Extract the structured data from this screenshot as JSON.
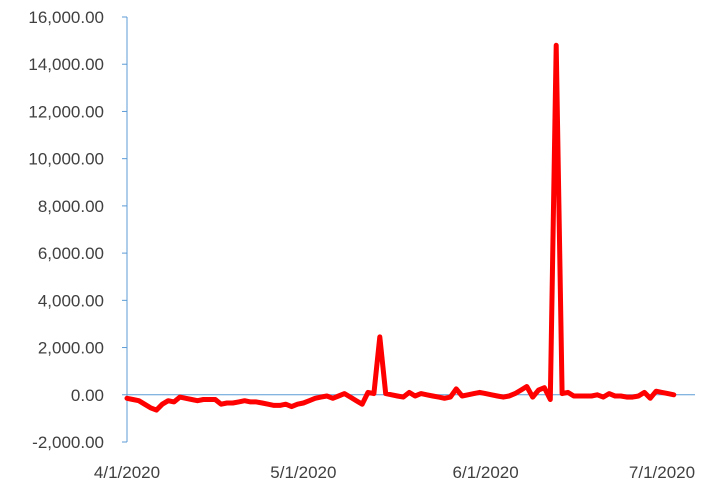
{
  "chart_data": {
    "type": "line",
    "title": "",
    "xlabel": "",
    "ylabel": "",
    "ylim": [
      -2000,
      16000
    ],
    "y_ticks": [
      -2000,
      0,
      2000,
      4000,
      6000,
      8000,
      10000,
      12000,
      14000,
      16000
    ],
    "y_tick_labels": [
      "-2,000.00",
      "0.00",
      "2,000.00",
      "4,000.00",
      "6,000.00",
      "8,000.00",
      "10,000.00",
      "12,000.00",
      "14,000.00",
      "16,000.00"
    ],
    "x_range": [
      "2020-04-01",
      "2020-07-01"
    ],
    "x_ticks": [
      "2020-04-01",
      "2020-05-01",
      "2020-06-01",
      "2020-07-01"
    ],
    "x_tick_labels": [
      "4/1/2020",
      "5/1/2020",
      "6/1/2020",
      "7/1/2020"
    ],
    "grid": false,
    "legend": "none",
    "axis_color": "#5b9bd5",
    "series": [
      {
        "color": "#ff0000",
        "points": [
          [
            "2020-04-01",
            -150
          ],
          [
            "2020-04-02",
            -200
          ],
          [
            "2020-04-03",
            -250
          ],
          [
            "2020-04-04",
            -400
          ],
          [
            "2020-04-05",
            -550
          ],
          [
            "2020-04-06",
            -650
          ],
          [
            "2020-04-07",
            -400
          ],
          [
            "2020-04-08",
            -250
          ],
          [
            "2020-04-09",
            -300
          ],
          [
            "2020-04-10",
            -100
          ],
          [
            "2020-04-11",
            -150
          ],
          [
            "2020-04-12",
            -200
          ],
          [
            "2020-04-13",
            -250
          ],
          [
            "2020-04-14",
            -200
          ],
          [
            "2020-04-15",
            -200
          ],
          [
            "2020-04-16",
            -200
          ],
          [
            "2020-04-17",
            -400
          ],
          [
            "2020-04-18",
            -350
          ],
          [
            "2020-04-19",
            -350
          ],
          [
            "2020-04-20",
            -300
          ],
          [
            "2020-04-21",
            -250
          ],
          [
            "2020-04-22",
            -300
          ],
          [
            "2020-04-23",
            -300
          ],
          [
            "2020-04-24",
            -350
          ],
          [
            "2020-04-25",
            -400
          ],
          [
            "2020-04-26",
            -450
          ],
          [
            "2020-04-27",
            -450
          ],
          [
            "2020-04-28",
            -400
          ],
          [
            "2020-04-29",
            -500
          ],
          [
            "2020-04-30",
            -400
          ],
          [
            "2020-05-01",
            -350
          ],
          [
            "2020-05-02",
            -250
          ],
          [
            "2020-05-03",
            -150
          ],
          [
            "2020-05-04",
            -100
          ],
          [
            "2020-05-05",
            -50
          ],
          [
            "2020-05-06",
            -150
          ],
          [
            "2020-05-07",
            -50
          ],
          [
            "2020-05-08",
            50
          ],
          [
            "2020-05-09",
            -100
          ],
          [
            "2020-05-10",
            -250
          ],
          [
            "2020-05-11",
            -400
          ],
          [
            "2020-05-12",
            100
          ],
          [
            "2020-05-13",
            50
          ],
          [
            "2020-05-14",
            2450
          ],
          [
            "2020-05-15",
            50
          ],
          [
            "2020-05-16",
            0
          ],
          [
            "2020-05-17",
            -50
          ],
          [
            "2020-05-18",
            -100
          ],
          [
            "2020-05-19",
            100
          ],
          [
            "2020-05-20",
            -50
          ],
          [
            "2020-05-21",
            50
          ],
          [
            "2020-05-22",
            0
          ],
          [
            "2020-05-23",
            -50
          ],
          [
            "2020-05-24",
            -100
          ],
          [
            "2020-05-25",
            -150
          ],
          [
            "2020-05-26",
            -100
          ],
          [
            "2020-05-27",
            250
          ],
          [
            "2020-05-28",
            -50
          ],
          [
            "2020-05-29",
            0
          ],
          [
            "2020-05-30",
            50
          ],
          [
            "2020-05-31",
            100
          ],
          [
            "2020-06-01",
            50
          ],
          [
            "2020-06-02",
            0
          ],
          [
            "2020-06-03",
            -50
          ],
          [
            "2020-06-04",
            -100
          ],
          [
            "2020-06-05",
            -50
          ],
          [
            "2020-06-06",
            50
          ],
          [
            "2020-06-07",
            200
          ],
          [
            "2020-06-08",
            350
          ],
          [
            "2020-06-09",
            -100
          ],
          [
            "2020-06-10",
            200
          ],
          [
            "2020-06-11",
            300
          ],
          [
            "2020-06-12",
            -200
          ],
          [
            "2020-06-13",
            14800
          ],
          [
            "2020-06-14",
            50
          ],
          [
            "2020-06-15",
            100
          ],
          [
            "2020-06-16",
            -50
          ],
          [
            "2020-06-17",
            -50
          ],
          [
            "2020-06-18",
            -50
          ],
          [
            "2020-06-19",
            -50
          ],
          [
            "2020-06-20",
            0
          ],
          [
            "2020-06-21",
            -100
          ],
          [
            "2020-06-22",
            50
          ],
          [
            "2020-06-23",
            -50
          ],
          [
            "2020-06-24",
            -50
          ],
          [
            "2020-06-25",
            -100
          ],
          [
            "2020-06-26",
            -100
          ],
          [
            "2020-06-27",
            -50
          ],
          [
            "2020-06-28",
            100
          ],
          [
            "2020-06-29",
            -150
          ],
          [
            "2020-06-30",
            150
          ],
          [
            "2020-07-01",
            100
          ],
          [
            "2020-07-02",
            50
          ],
          [
            "2020-07-03",
            0
          ]
        ]
      }
    ]
  }
}
